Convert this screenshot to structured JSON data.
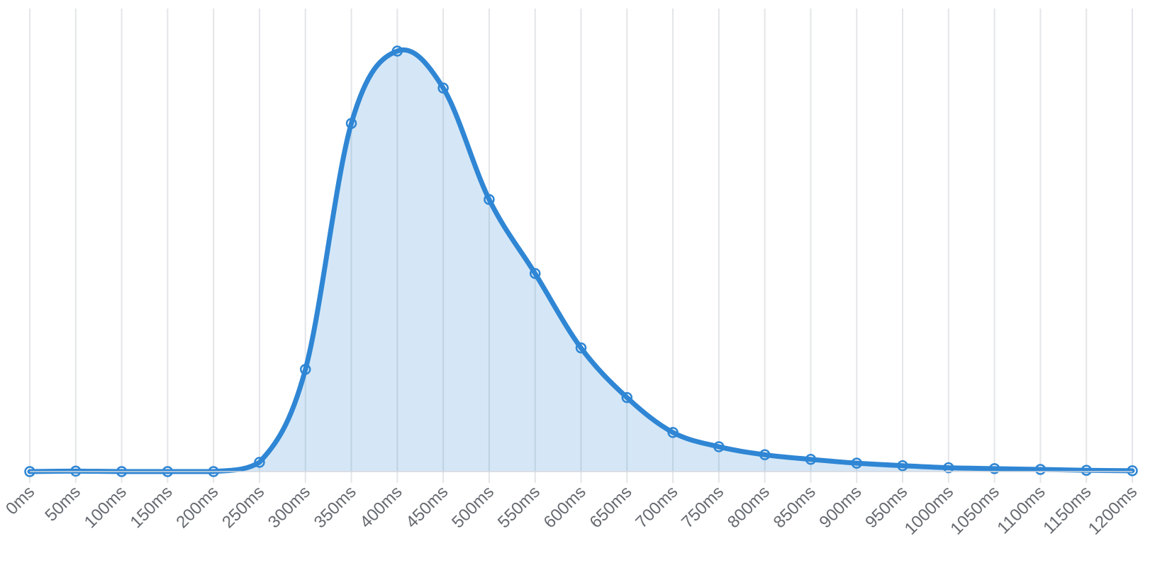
{
  "chart_data": {
    "type": "area",
    "title": "",
    "xlabel": "",
    "ylabel": "",
    "x": [
      "0ms",
      "50ms",
      "100ms",
      "150ms",
      "200ms",
      "250ms",
      "300ms",
      "350ms",
      "400ms",
      "450ms",
      "500ms",
      "550ms",
      "600ms",
      "650ms",
      "700ms",
      "750ms",
      "800ms",
      "850ms",
      "900ms",
      "950ms",
      "1000ms",
      "1050ms",
      "1100ms",
      "1150ms",
      "1200ms"
    ],
    "series": [
      {
        "values": [
          0,
          0.1,
          0,
          0,
          0,
          2.2,
          24.3,
          82.8,
          100,
          91.2,
          64.7,
          47.1,
          29.4,
          17.6,
          9.3,
          5.9,
          4.0,
          2.9,
          2.0,
          1.4,
          0.9,
          0.7,
          0.5,
          0.3,
          0.2
        ]
      }
    ],
    "ylim": [
      0,
      100
    ],
    "grid": "vertical",
    "smooth": true,
    "colors": {
      "line": "#2f86d4",
      "fill": "#2f86d4",
      "grid": "#e3e5e8",
      "tick_text": "#666a70"
    }
  }
}
